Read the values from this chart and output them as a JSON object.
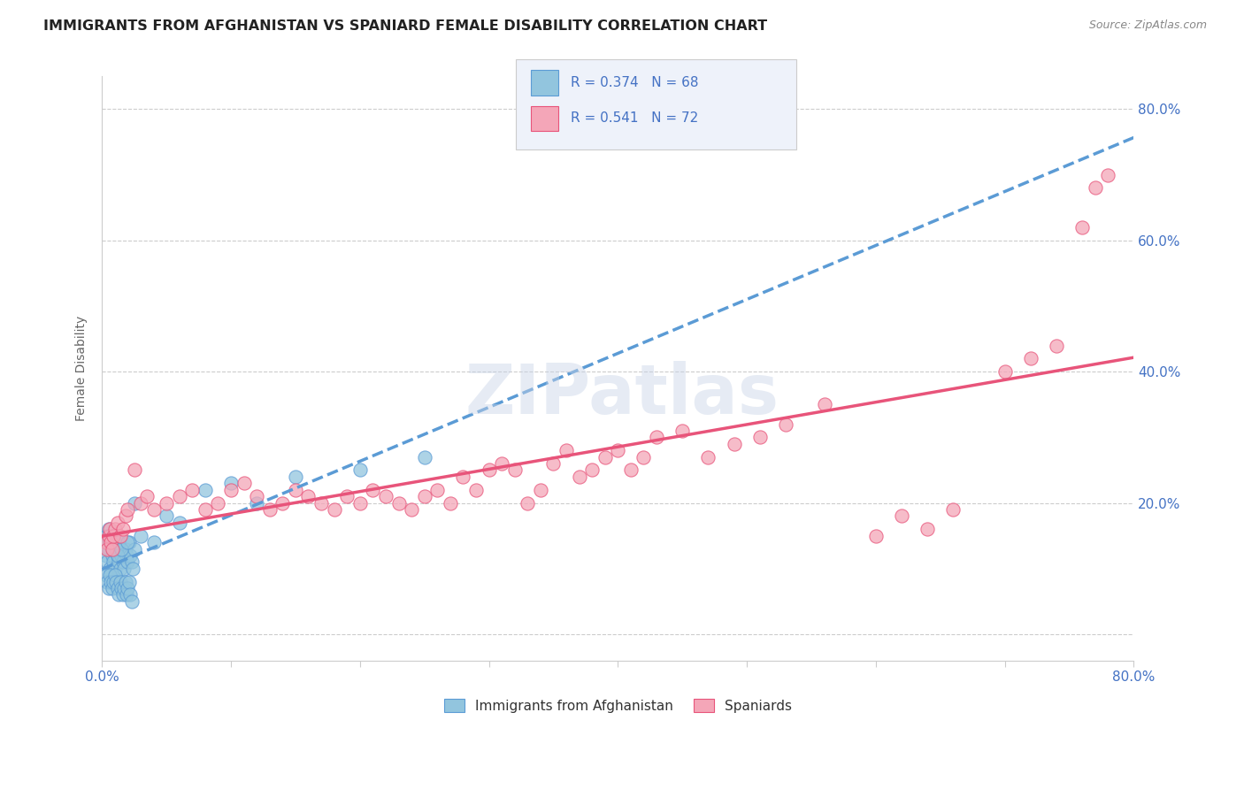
{
  "title": "IMMIGRANTS FROM AFGHANISTAN VS SPANIARD FEMALE DISABILITY CORRELATION CHART",
  "source": "Source: ZipAtlas.com",
  "ylabel": "Female Disability",
  "y_ticks": [
    0.0,
    0.2,
    0.4,
    0.6,
    0.8
  ],
  "y_tick_labels": [
    "",
    "20.0%",
    "40.0%",
    "60.0%",
    "80.0%"
  ],
  "x_ticks": [
    0.0,
    0.1,
    0.2,
    0.3,
    0.4,
    0.5,
    0.6,
    0.7,
    0.8
  ],
  "xlim": [
    0.0,
    0.8
  ],
  "ylim": [
    -0.04,
    0.85
  ],
  "color_blue": "#92C5DE",
  "color_pink": "#F4A6B8",
  "line_blue": "#5B9BD5",
  "line_pink": "#E8547A",
  "scatter_blue_x": [
    0.003,
    0.004,
    0.005,
    0.006,
    0.007,
    0.008,
    0.009,
    0.01,
    0.011,
    0.012,
    0.013,
    0.014,
    0.015,
    0.016,
    0.017,
    0.018,
    0.019,
    0.02,
    0.021,
    0.022,
    0.023,
    0.024,
    0.025,
    0.003,
    0.004,
    0.005,
    0.006,
    0.007,
    0.008,
    0.009,
    0.01,
    0.011,
    0.012,
    0.013,
    0.014,
    0.015,
    0.016,
    0.017,
    0.018,
    0.019,
    0.02,
    0.021,
    0.022,
    0.023,
    0.003,
    0.004,
    0.005,
    0.006,
    0.007,
    0.008,
    0.009,
    0.01,
    0.011,
    0.012,
    0.013,
    0.015,
    0.02,
    0.025,
    0.03,
    0.04,
    0.05,
    0.06,
    0.08,
    0.1,
    0.12,
    0.15,
    0.2,
    0.25
  ],
  "scatter_blue_y": [
    0.12,
    0.11,
    0.13,
    0.1,
    0.09,
    0.12,
    0.11,
    0.1,
    0.13,
    0.12,
    0.11,
    0.1,
    0.12,
    0.11,
    0.1,
    0.13,
    0.12,
    0.11,
    0.14,
    0.12,
    0.11,
    0.1,
    0.13,
    0.09,
    0.08,
    0.07,
    0.09,
    0.08,
    0.07,
    0.08,
    0.09,
    0.08,
    0.07,
    0.06,
    0.08,
    0.07,
    0.06,
    0.07,
    0.08,
    0.06,
    0.07,
    0.08,
    0.06,
    0.05,
    0.15,
    0.14,
    0.16,
    0.15,
    0.14,
    0.13,
    0.15,
    0.14,
    0.13,
    0.12,
    0.14,
    0.13,
    0.14,
    0.2,
    0.15,
    0.14,
    0.18,
    0.17,
    0.22,
    0.23,
    0.2,
    0.24,
    0.25,
    0.27
  ],
  "scatter_pink_x": [
    0.003,
    0.004,
    0.005,
    0.006,
    0.007,
    0.008,
    0.009,
    0.01,
    0.012,
    0.014,
    0.016,
    0.018,
    0.02,
    0.025,
    0.03,
    0.035,
    0.04,
    0.05,
    0.06,
    0.07,
    0.08,
    0.09,
    0.1,
    0.11,
    0.12,
    0.13,
    0.14,
    0.15,
    0.16,
    0.17,
    0.18,
    0.19,
    0.2,
    0.21,
    0.22,
    0.23,
    0.24,
    0.25,
    0.26,
    0.27,
    0.28,
    0.29,
    0.3,
    0.31,
    0.32,
    0.33,
    0.34,
    0.35,
    0.36,
    0.37,
    0.38,
    0.39,
    0.4,
    0.41,
    0.42,
    0.43,
    0.45,
    0.47,
    0.49,
    0.51,
    0.53,
    0.56,
    0.6,
    0.62,
    0.64,
    0.66,
    0.7,
    0.72,
    0.74,
    0.76,
    0.77,
    0.78
  ],
  "scatter_pink_y": [
    0.14,
    0.13,
    0.15,
    0.16,
    0.14,
    0.13,
    0.15,
    0.16,
    0.17,
    0.15,
    0.16,
    0.18,
    0.19,
    0.25,
    0.2,
    0.21,
    0.19,
    0.2,
    0.21,
    0.22,
    0.19,
    0.2,
    0.22,
    0.23,
    0.21,
    0.19,
    0.2,
    0.22,
    0.21,
    0.2,
    0.19,
    0.21,
    0.2,
    0.22,
    0.21,
    0.2,
    0.19,
    0.21,
    0.22,
    0.2,
    0.24,
    0.22,
    0.25,
    0.26,
    0.25,
    0.2,
    0.22,
    0.26,
    0.28,
    0.24,
    0.25,
    0.27,
    0.28,
    0.25,
    0.27,
    0.3,
    0.31,
    0.27,
    0.29,
    0.3,
    0.32,
    0.35,
    0.15,
    0.18,
    0.16,
    0.19,
    0.4,
    0.42,
    0.44,
    0.62,
    0.68,
    0.7
  ]
}
